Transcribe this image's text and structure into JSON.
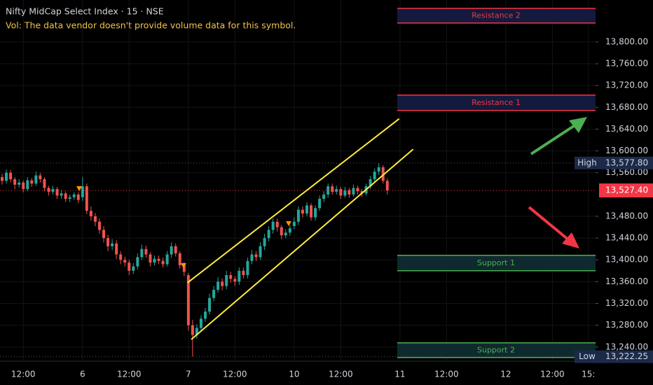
{
  "chart_data": {
    "type": "candlestick",
    "title": "Nifty MidCap Select Index · 15 · NSE",
    "subtitle": "Vol: The data vendor doesn't provide volume data for this symbol.",
    "up_color": "#26a69a",
    "down_color": "#ef5350",
    "open": [
      13540,
      13552,
      13545,
      13560,
      13548,
      13538,
      13542,
      13530,
      13546,
      13540,
      13555,
      13548,
      13532,
      13525,
      13530,
      13518,
      13522,
      13512,
      13515,
      13520,
      13515,
      13535,
      13490,
      13480,
      13470,
      13455,
      13440,
      13425,
      13430,
      13410,
      13400,
      13395,
      13380,
      13388,
      13405,
      13420,
      13410,
      13395,
      13402,
      13398,
      13392,
      13410,
      13425,
      13412,
      13390,
      13372,
      13280,
      13262,
      13275,
      13292,
      13305,
      13330,
      13345,
      13360,
      13352,
      13372,
      13365,
      13360,
      13380,
      13372,
      13398,
      13410,
      13405,
      13425,
      13440,
      13455,
      13470,
      13460,
      13445,
      13450,
      13462,
      13470,
      13492,
      13485,
      13500,
      13478,
      13495,
      13512,
      13520,
      13535,
      13525,
      13530,
      13518,
      13528,
      13520,
      13532,
      13526,
      13522,
      13535,
      13548,
      13562,
      13570,
      13545
    ],
    "high": [
      13560,
      13558,
      13566,
      13565,
      13552,
      13548,
      13546,
      13552,
      13550,
      13562,
      13560,
      13552,
      13536,
      13536,
      13534,
      13528,
      13526,
      13520,
      13524,
      13524,
      13552,
      13540,
      13498,
      13486,
      13476,
      13462,
      13446,
      13438,
      13436,
      13416,
      13406,
      13400,
      13394,
      13412,
      13428,
      13426,
      13414,
      13408,
      13408,
      13404,
      13416,
      13432,
      13430,
      13416,
      13396,
      13376,
      13290,
      13282,
      13298,
      13312,
      13338,
      13352,
      13368,
      13366,
      13380,
      13378,
      13370,
      13386,
      13386,
      13404,
      13418,
      13416,
      13432,
      13448,
      13462,
      13476,
      13476,
      13464,
      13456,
      13464,
      13478,
      13498,
      13498,
      13506,
      13504,
      13500,
      13518,
      13526,
      13540,
      13540,
      13536,
      13534,
      13534,
      13532,
      13538,
      13536,
      13530,
      13540,
      13554,
      13568,
      13577.8,
      13574,
      13550
    ],
    "low": [
      13532,
      13538,
      13540,
      13542,
      13530,
      13532,
      13524,
      13526,
      13534,
      13536,
      13542,
      13526,
      13518,
      13520,
      13512,
      13512,
      13506,
      13506,
      13510,
      13504,
      13508,
      13484,
      13472,
      13462,
      13448,
      13432,
      13416,
      13418,
      13402,
      13392,
      13388,
      13372,
      13374,
      13382,
      13400,
      13404,
      13388,
      13390,
      13392,
      13386,
      13388,
      13404,
      13406,
      13384,
      13370,
      13270,
      13222.25,
      13255,
      13268,
      13286,
      13300,
      13324,
      13340,
      13344,
      13346,
      13358,
      13352,
      13354,
      13366,
      13366,
      13392,
      13398,
      13400,
      13418,
      13434,
      13448,
      13452,
      13438,
      13440,
      13444,
      13456,
      13464,
      13478,
      13480,
      13472,
      13472,
      13490,
      13506,
      13514,
      13520,
      13520,
      13512,
      13514,
      13514,
      13516,
      13520,
      13516,
      13518,
      13530,
      13542,
      13556,
      13540,
      13520
    ],
    "close": [
      13552,
      13545,
      13560,
      13548,
      13538,
      13542,
      13530,
      13546,
      13540,
      13555,
      13548,
      13532,
      13525,
      13530,
      13518,
      13522,
      13512,
      13515,
      13520,
      13510,
      13535,
      13490,
      13480,
      13470,
      13455,
      13440,
      13425,
      13430,
      13410,
      13400,
      13395,
      13380,
      13388,
      13405,
      13420,
      13410,
      13395,
      13402,
      13398,
      13392,
      13410,
      13425,
      13412,
      13390,
      13378,
      13280,
      13262,
      13275,
      13292,
      13305,
      13330,
      13345,
      13360,
      13352,
      13372,
      13365,
      13360,
      13380,
      13372,
      13398,
      13410,
      13405,
      13425,
      13440,
      13455,
      13470,
      13460,
      13445,
      13450,
      13458,
      13470,
      13492,
      13485,
      13500,
      13478,
      13495,
      13512,
      13520,
      13535,
      13525,
      13530,
      13518,
      13528,
      13520,
      13532,
      13526,
      13522,
      13535,
      13548,
      13562,
      13570,
      13545,
      13527.4
    ],
    "xlim": [
      0.5,
      141.2
    ],
    "xticks": [
      {
        "value": 6,
        "label": "12:00"
      },
      {
        "value": 20,
        "label": "6"
      },
      {
        "value": 31,
        "label": "12:00"
      },
      {
        "value": 45,
        "label": "7"
      },
      {
        "value": 56,
        "label": "12:00"
      },
      {
        "value": 70,
        "label": "10"
      },
      {
        "value": 81,
        "label": "12:00"
      },
      {
        "value": 95,
        "label": "11"
      },
      {
        "value": 106,
        "label": "12:00"
      },
      {
        "value": 120,
        "label": "12"
      },
      {
        "value": 131,
        "label": "12:00"
      },
      {
        "value": 139.5,
        "label": "15:"
      }
    ],
    "ylim": [
      13214,
      13877
    ],
    "yticks": [
      {
        "value": 13800,
        "label": "13,800.00"
      },
      {
        "value": 13760,
        "label": "13,760.00"
      },
      {
        "value": 13720,
        "label": "13,720.00"
      },
      {
        "value": 13680,
        "label": "13,680.00"
      },
      {
        "value": 13640,
        "label": "13,640.00"
      },
      {
        "value": 13600,
        "label": "13,600.00"
      },
      {
        "value": 13560,
        "label": "13,560.00"
      },
      {
        "value": 13480,
        "label": "13,480.00"
      },
      {
        "value": 13440,
        "label": "13,440.00"
      },
      {
        "value": 13400,
        "label": "13,400.00"
      },
      {
        "value": 13360,
        "label": "13,360.00"
      },
      {
        "value": 13320,
        "label": "13,320.00"
      },
      {
        "value": 13280,
        "label": "13,280.00"
      },
      {
        "value": 13240,
        "label": "13,240.00"
      }
    ],
    "grid": true,
    "levels": [
      {
        "name": "High",
        "value": 13577.8,
        "label": "13,577.80"
      },
      {
        "name": "Low",
        "value": 13222.25,
        "label": "13,222.25"
      }
    ],
    "last_price": {
      "value": 13527.4,
      "label": "13,527.40",
      "color": "#f23645"
    },
    "zones": [
      {
        "name": "Resistance 2",
        "top": 13861.6,
        "bottom": 13834.7,
        "color": "#f23645",
        "fill": "#131a3d"
      },
      {
        "name": "Resistance 1",
        "top": 13702.4,
        "bottom": 13674.1,
        "color": "#f23645",
        "fill": "#131a3d"
      },
      {
        "name": "Support 1",
        "top": 13408.3,
        "bottom": 13380,
        "color": "#4caf50",
        "fill": "#0f2a2e"
      },
      {
        "name": "Support 2",
        "top": 13247.7,
        "bottom": 13220.7,
        "color": "#4caf50",
        "fill": "#0f2a2e"
      }
    ],
    "trendlines": [
      {
        "x": [
          44.8,
          94.8
        ],
        "y": [
          13358,
          13659
        ],
        "color": "#ffeb3b"
      },
      {
        "x": [
          45.7,
          98.1
        ],
        "y": [
          13254,
          13603
        ],
        "color": "#ffeb3b"
      }
    ]
  }
}
